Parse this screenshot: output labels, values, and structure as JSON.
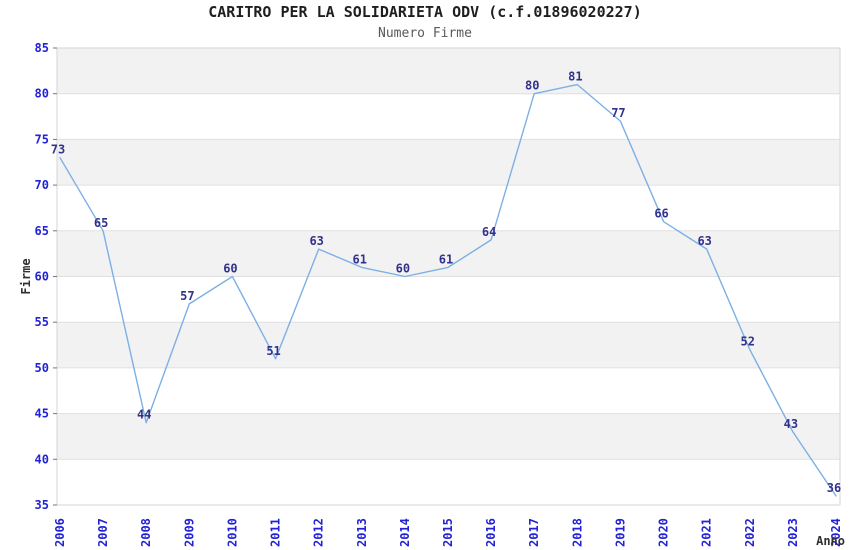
{
  "title": "CARITRO PER LA SOLIDARIETA ODV (c.f.01896020227)",
  "subtitle": "Numero Firme",
  "chart_data": {
    "type": "line",
    "x": [
      2006,
      2007,
      2008,
      2009,
      2010,
      2011,
      2012,
      2013,
      2014,
      2015,
      2016,
      2017,
      2018,
      2019,
      2020,
      2021,
      2022,
      2023,
      2024
    ],
    "series": [
      {
        "name": "Numero Firme",
        "values": [
          73,
          65,
          44,
          57,
          60,
          51,
          63,
          61,
          60,
          61,
          64,
          80,
          81,
          77,
          66,
          63,
          52,
          43,
          36
        ]
      }
    ],
    "title": "CARITRO PER LA SOLIDARIETA ODV (c.f.01896020227)",
    "subtitle": "Numero Firme",
    "xlabel": "Anno",
    "ylabel": "Firme",
    "ylim": [
      35,
      85
    ],
    "yticks": [
      35,
      40,
      45,
      50,
      55,
      60,
      65,
      70,
      75,
      80,
      85
    ],
    "grid": true,
    "alternating_bands": true,
    "data_labels_shown": true,
    "legend_position": "none",
    "colors": {
      "line": "#7cb0e4",
      "band_gray": "#f2f2f2",
      "band_white": "#ffffff",
      "gridline": "#e0e0e0",
      "plot_border": "#d6d6d6",
      "tick_label": "#2222d6",
      "data_label": "#32328c",
      "title": "#1f1f1f",
      "subtitle": "#5a5a5a",
      "axis_label": "#303030",
      "tick_mark": "#777777"
    }
  }
}
